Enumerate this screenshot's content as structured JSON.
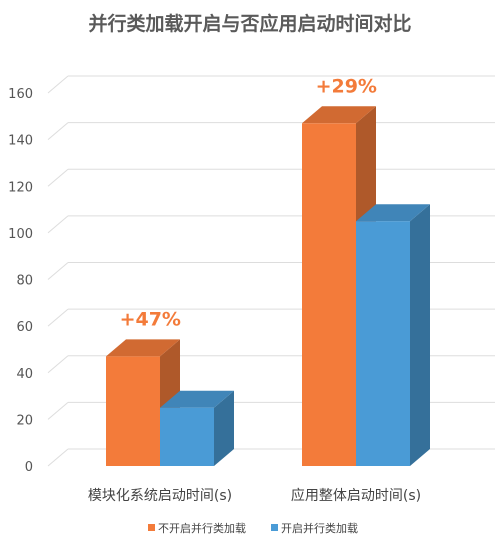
{
  "chart_data": {
    "type": "bar",
    "title": "并行类加载开启与否应用启动时间对比",
    "categories": [
      "模块化系统启动时间(s)",
      "应用整体启动时间(s)"
    ],
    "series": [
      {
        "name": "不开启并行类加载",
        "values": [
          47,
          147
        ],
        "color": "#f37b3a"
      },
      {
        "name": "开启并行类加载",
        "values": [
          25,
          105
        ],
        "color": "#4a9bd6"
      }
    ],
    "annotations": [
      "+47%",
      "+29%"
    ],
    "yticks": [
      0,
      20,
      40,
      60,
      80,
      100,
      120,
      140,
      160
    ],
    "ylim": [
      0,
      160
    ],
    "grid": true,
    "legend_position": "bottom",
    "style": "3d-clustered-column"
  }
}
